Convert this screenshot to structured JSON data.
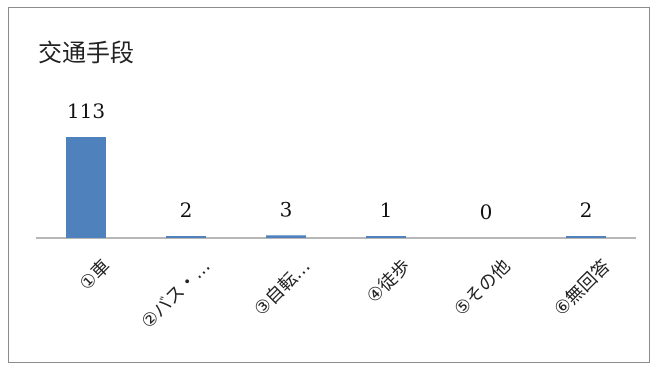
{
  "chart_data": {
    "type": "bar",
    "title": "交通手段",
    "categories": [
      "①車",
      "②バス・…",
      "③自転…",
      "④徒歩",
      "⑤その他",
      "⑥無回答"
    ],
    "values": [
      113,
      2,
      3,
      1,
      0,
      2
    ],
    "ylim": [
      0,
      113
    ],
    "grid": false,
    "bar_color": "#4f81bd",
    "axis_color": "#8c8c8c"
  }
}
